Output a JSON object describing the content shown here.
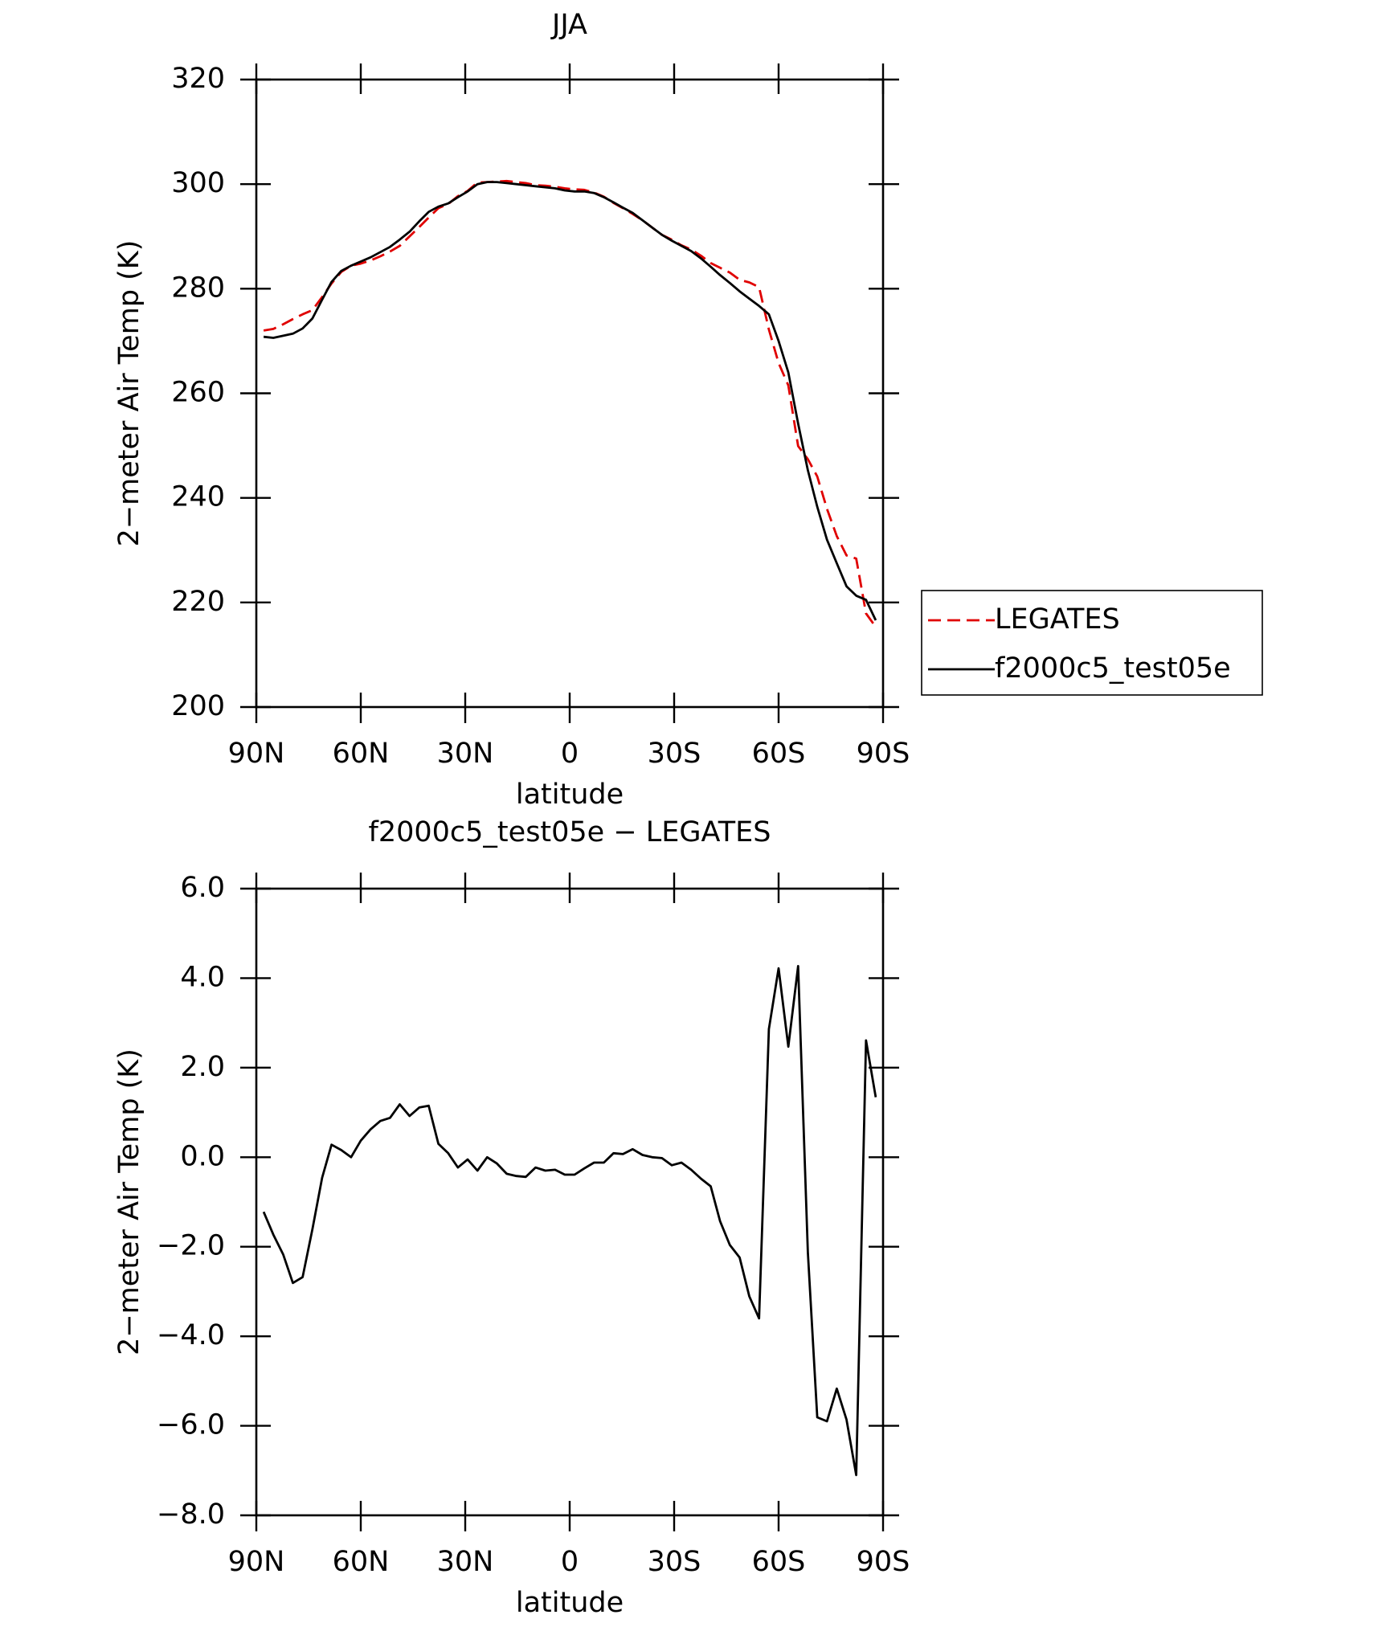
{
  "chart_data": [
    {
      "type": "line",
      "title": "JJA",
      "xlabel": "latitude",
      "ylabel": "2−meter Air Temp (K)",
      "x": [
        87.9,
        85.1,
        82.3,
        79.5,
        76.7,
        73.9,
        71.1,
        68.4,
        65.6,
        62.8,
        60.0,
        57.2,
        54.4,
        51.6,
        48.8,
        46.0,
        43.2,
        40.5,
        37.7,
        34.9,
        32.1,
        29.3,
        26.5,
        23.7,
        20.9,
        18.1,
        15.3,
        12.6,
        9.8,
        7.0,
        4.2,
        1.4,
        -1.4,
        -4.2,
        -7.0,
        -9.8,
        -12.6,
        -15.3,
        -18.1,
        -20.9,
        -23.7,
        -26.5,
        -29.3,
        -32.1,
        -34.9,
        -37.7,
        -40.5,
        -43.2,
        -46.0,
        -48.8,
        -51.6,
        -54.4,
        -57.2,
        -60.0,
        -62.8,
        -65.6,
        -68.4,
        -71.1,
        -73.9,
        -76.7,
        -79.5,
        -82.3,
        -85.1,
        -87.9
      ],
      "series": [
        {
          "name": "LEGATES",
          "color": "#e00000",
          "dashed": true,
          "values": [
            272.0,
            272.3,
            273.2,
            274.2,
            275.1,
            275.9,
            278.4,
            281.0,
            283.2,
            284.4,
            284.8,
            285.4,
            286.2,
            287.1,
            288.2,
            290.0,
            291.8,
            293.6,
            295.4,
            296.2,
            297.7,
            298.7,
            300.3,
            300.4,
            300.5,
            300.6,
            300.4,
            300.2,
            299.8,
            299.7,
            299.5,
            299.2,
            299.0,
            298.9,
            298.4,
            297.6,
            296.4,
            295.4,
            294.3,
            293.1,
            291.7,
            290.3,
            289.4,
            288.3,
            287.5,
            286.3,
            284.9,
            284.0,
            283.1,
            281.7,
            281.2,
            280.3,
            272.2,
            265.8,
            261.5,
            249.9,
            247.4,
            244.1,
            237.9,
            232.7,
            229.0,
            228.4,
            217.9,
            215.3
          ]
        },
        {
          "name": "f2000c5_test05e",
          "color": "#000000",
          "dashed": false,
          "values": [
            270.8,
            270.6,
            271.0,
            271.4,
            272.4,
            274.3,
            277.9,
            281.3,
            283.4,
            284.4,
            285.2,
            286.0,
            287.0,
            288.0,
            289.4,
            290.9,
            292.9,
            294.7,
            295.7,
            296.3,
            297.5,
            298.6,
            300.0,
            300.4,
            300.4,
            300.2,
            300.0,
            299.8,
            299.6,
            299.4,
            299.2,
            298.8,
            298.6,
            298.6,
            298.3,
            297.5,
            296.5,
            295.5,
            294.5,
            293.1,
            291.7,
            290.3,
            289.2,
            288.2,
            287.2,
            285.8,
            284.2,
            282.6,
            281.1,
            279.5,
            278.1,
            276.7,
            275.1,
            270.0,
            264.0,
            254.2,
            245.3,
            238.3,
            232.0,
            227.5,
            223.1,
            221.3,
            220.5,
            216.6
          ]
        }
      ],
      "xlim": [
        90,
        -90
      ],
      "xticks": [
        {
          "value": 90,
          "label": "90N"
        },
        {
          "value": 60,
          "label": "60N"
        },
        {
          "value": 30,
          "label": "30N"
        },
        0,
        {
          "value": -30,
          "label": "30S"
        },
        {
          "value": -60,
          "label": "60S"
        },
        {
          "value": -90,
          "label": "90S"
        }
      ],
      "ylim": [
        200,
        320
      ],
      "yticks": [
        200,
        220,
        240,
        260,
        280,
        300,
        320
      ],
      "legend": "right"
    },
    {
      "type": "line",
      "title": "f2000c5_test05e − LEGATES",
      "xlabel": "latitude",
      "ylabel": "2−meter Air Temp (K)",
      "x": [
        87.9,
        85.1,
        82.3,
        79.5,
        76.7,
        73.9,
        71.1,
        68.4,
        65.6,
        62.8,
        60.0,
        57.2,
        54.4,
        51.6,
        48.8,
        46.0,
        43.2,
        40.5,
        37.7,
        34.9,
        32.1,
        29.3,
        26.5,
        23.7,
        20.9,
        18.1,
        15.3,
        12.6,
        9.8,
        7.0,
        4.2,
        1.4,
        -1.4,
        -4.2,
        -7.0,
        -9.8,
        -12.6,
        -15.3,
        -18.1,
        -20.9,
        -23.7,
        -26.5,
        -29.3,
        -32.1,
        -34.9,
        -37.7,
        -40.5,
        -43.2,
        -46.0,
        -48.8,
        -51.6,
        -54.4,
        -57.2,
        -60.0,
        -62.8,
        -65.6,
        -68.4,
        -71.1,
        -73.9,
        -76.7,
        -79.5,
        -82.3,
        -85.1,
        -87.9
      ],
      "series": [
        {
          "color": "#000000",
          "dashed": false,
          "values": [
            -1.22,
            -1.73,
            -2.17,
            -2.81,
            -2.68,
            -1.61,
            -0.46,
            0.28,
            0.16,
            0.0,
            0.37,
            0.62,
            0.81,
            0.88,
            1.18,
            0.92,
            1.11,
            1.15,
            0.3,
            0.09,
            -0.23,
            -0.05,
            -0.3,
            0.0,
            -0.14,
            -0.37,
            -0.42,
            -0.44,
            -0.23,
            -0.3,
            -0.28,
            -0.39,
            -0.39,
            -0.25,
            -0.12,
            -0.12,
            0.09,
            0.07,
            0.18,
            0.05,
            0.0,
            -0.02,
            -0.18,
            -0.12,
            -0.28,
            -0.48,
            -0.65,
            -1.43,
            -1.96,
            -2.24,
            -3.11,
            -3.6,
            2.86,
            4.22,
            2.47,
            4.27,
            -2.12,
            -5.81,
            -5.9,
            -5.17,
            -5.86,
            -7.1,
            2.61,
            1.34
          ]
        }
      ],
      "xlim": [
        90,
        -90
      ],
      "xticks": [
        {
          "value": 90,
          "label": "90N"
        },
        {
          "value": 60,
          "label": "60N"
        },
        {
          "value": 30,
          "label": "30N"
        },
        0,
        {
          "value": -30,
          "label": "30S"
        },
        {
          "value": -60,
          "label": "60S"
        },
        {
          "value": -90,
          "label": "90S"
        }
      ],
      "ylim": [
        -8,
        6
      ],
      "yticks": [
        {
          "value": -8,
          "label": "−8.0"
        },
        {
          "value": -6,
          "label": "−6.0"
        },
        {
          "value": -4,
          "label": "−4.0"
        },
        {
          "value": -2,
          "label": "−2.0"
        },
        {
          "value": 0,
          "label": "0.0"
        },
        {
          "value": 2,
          "label": "2.0"
        },
        {
          "value": 4,
          "label": "4.0"
        },
        {
          "value": 6,
          "label": "6.0"
        }
      ]
    }
  ]
}
